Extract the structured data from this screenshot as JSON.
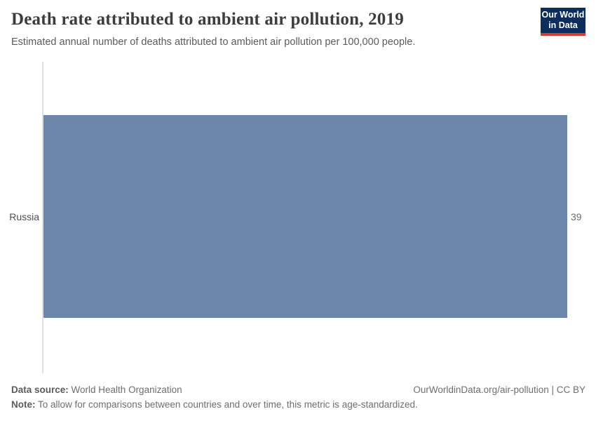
{
  "header": {
    "title": "Death rate attributed to ambient air pollution, 2019",
    "subtitle": "Estimated annual number of deaths attributed to ambient air pollution per 100,000 people.",
    "logo": {
      "line1": "Our World",
      "line2": "in Data",
      "bg_color": "#0d2e5c",
      "accent_color": "#d73a32"
    }
  },
  "chart_data": {
    "type": "bar",
    "orientation": "horizontal",
    "categories": [
      "Russia"
    ],
    "values": [
      39
    ],
    "value_labels": [
      "39"
    ],
    "series": [
      {
        "name": "Death rate attributed to ambient air pollution per 100,000 people",
        "values": [
          39
        ]
      }
    ],
    "title": "Death rate attributed to ambient air pollution, 2019",
    "xlabel": "",
    "ylabel": "",
    "xlim": [
      0,
      39
    ],
    "grid": false,
    "legend": false,
    "bar_color": "#6d87ab",
    "axis_line_color": "#e0e0e0"
  },
  "footer": {
    "data_source_label": "Data source:",
    "data_source_value": " World Health Organization",
    "note_label": "Note:",
    "note_value": " To allow for comparisons between countries and over time, this metric is age-standardized.",
    "link": "OurWorldinData.org/air-pollution | CC BY"
  }
}
